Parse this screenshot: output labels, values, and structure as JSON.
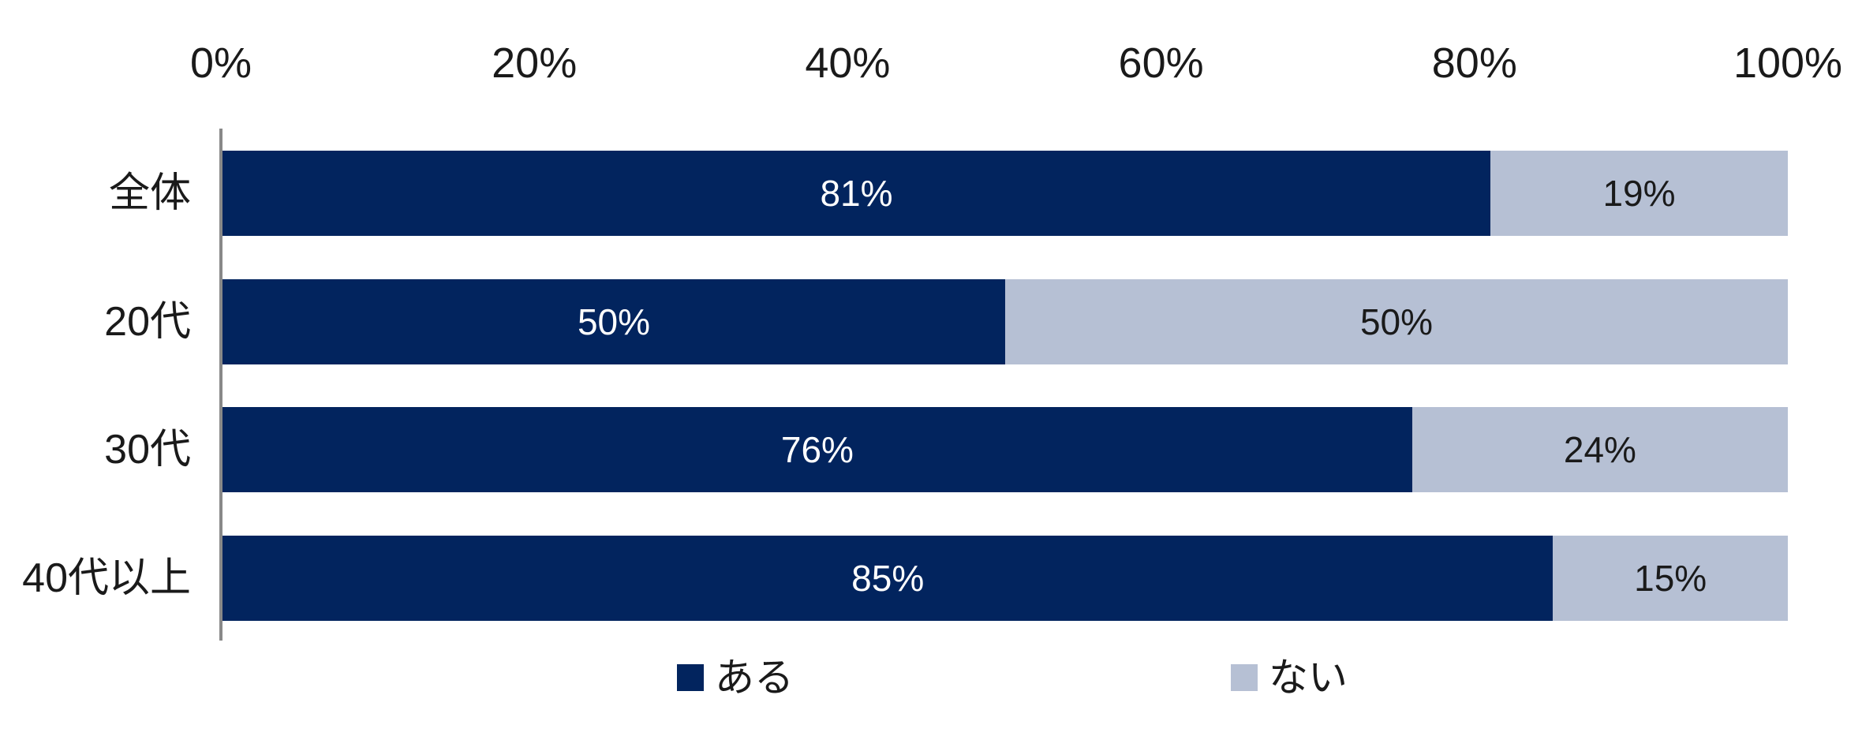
{
  "chart_data": {
    "type": "bar",
    "orientation": "horizontal",
    "stacked": true,
    "title": "",
    "categories": [
      "全体",
      "20代",
      "30代",
      "40代以上"
    ],
    "series": [
      {
        "name": "ある",
        "values": [
          81,
          50,
          76,
          85
        ],
        "color": "#02245e",
        "label_color": "#ffffff"
      },
      {
        "name": "ない",
        "values": [
          19,
          50,
          24,
          15
        ],
        "color": "#b6c0d4",
        "label_color": "#1a1a1a"
      }
    ],
    "data_label_suffix": "%",
    "x_axis": {
      "position": "top",
      "min": 0,
      "max": 100,
      "tick_labels": [
        "0%",
        "20%",
        "40%",
        "60%",
        "80%",
        "100%"
      ],
      "grid": false
    },
    "legend": {
      "position": "bottom",
      "entries": [
        "ある",
        "ない"
      ]
    },
    "colors": {
      "axis_line": "#898989",
      "tick_text": "#1a1a1a",
      "category_text": "#1a1a1a",
      "background": "#ffffff"
    }
  }
}
